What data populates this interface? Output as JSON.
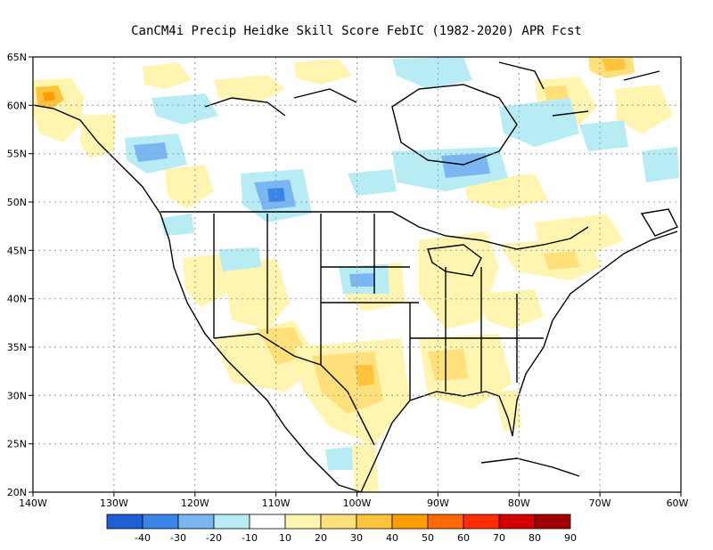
{
  "title": "CanCM4i Precip Heidke Skill Score FebIC (1982-2020) APR Fcst",
  "map": {
    "lon_range": [
      -140,
      -60
    ],
    "lat_range": [
      20,
      65
    ],
    "lat_ticks": [
      "20N",
      "25N",
      "30N",
      "35N",
      "40N",
      "45N",
      "50N",
      "55N",
      "60N",
      "65N"
    ],
    "lon_ticks": [
      "140W",
      "130W",
      "120W",
      "110W",
      "100W",
      "90W",
      "80W",
      "70W",
      "60W"
    ],
    "gridlines": "dotted"
  },
  "colorbar": {
    "labels": [
      "-40",
      "-30",
      "-20",
      "-10",
      "10",
      "20",
      "30",
      "40",
      "50",
      "60",
      "70",
      "80",
      "90"
    ],
    "colors": [
      "#1f5fd6",
      "#3a86e8",
      "#7ab6f2",
      "#b8ecf5",
      "#ffffff",
      "#fff5b0",
      "#ffe07a",
      "#ffc43c",
      "#ff9c00",
      "#ff6a00",
      "#ff2d00",
      "#d40000",
      "#a00000"
    ]
  },
  "fields": {
    "positive_light": "#fff5b0",
    "positive_mid": "#ffe07a",
    "positive_strong": "#ffc43c",
    "positive_peak": "#ff9c00",
    "negative_light": "#b8ecf5",
    "negative_mid": "#7ab6f2",
    "negative_strong": "#3a86e8"
  }
}
